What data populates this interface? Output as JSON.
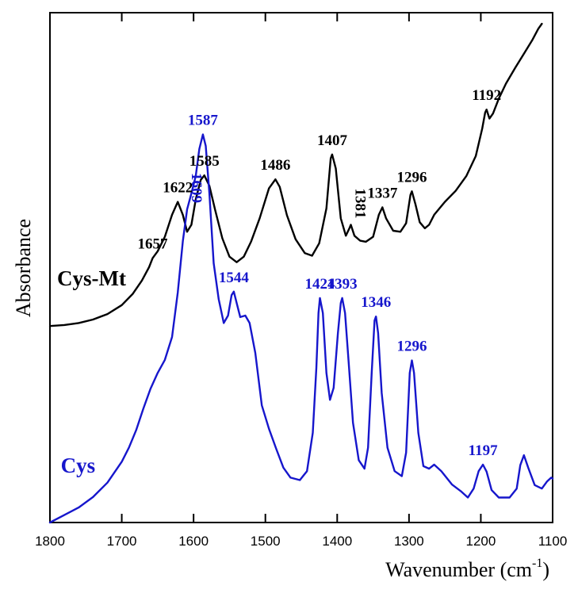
{
  "chart_data": {
    "type": "line",
    "xlabel": "Wavenumber (cm",
    "xlabel_sup": "-1",
    "xlabel_close": ")",
    "ylabel": "Absorbance",
    "xlim": [
      1800,
      1100
    ],
    "ylim": [
      0,
      1
    ],
    "x_reversed": true,
    "y_ticks_shown": false,
    "grid": false,
    "x_ticks": [
      1800,
      1700,
      1600,
      1500,
      1400,
      1300,
      1200,
      1100
    ],
    "series": [
      {
        "name": "Cys-Mt",
        "color": "#000000",
        "points": [
          [
            1800,
            0.394
          ],
          [
            1780,
            0.396
          ],
          [
            1760,
            0.4
          ],
          [
            1740,
            0.407
          ],
          [
            1720,
            0.418
          ],
          [
            1700,
            0.436
          ],
          [
            1685,
            0.458
          ],
          [
            1672,
            0.485
          ],
          [
            1662,
            0.512
          ],
          [
            1657,
            0.53
          ],
          [
            1650,
            0.544
          ],
          [
            1640,
            0.573
          ],
          [
            1630,
            0.617
          ],
          [
            1622,
            0.643
          ],
          [
            1615,
            0.617
          ],
          [
            1609,
            0.583
          ],
          [
            1603,
            0.597
          ],
          [
            1597,
            0.648
          ],
          [
            1590,
            0.687
          ],
          [
            1585,
            0.696
          ],
          [
            1578,
            0.675
          ],
          [
            1570,
            0.627
          ],
          [
            1560,
            0.57
          ],
          [
            1550,
            0.533
          ],
          [
            1540,
            0.522
          ],
          [
            1530,
            0.533
          ],
          [
            1520,
            0.563
          ],
          [
            1508,
            0.61
          ],
          [
            1495,
            0.67
          ],
          [
            1486,
            0.688
          ],
          [
            1480,
            0.673
          ],
          [
            1470,
            0.616
          ],
          [
            1458,
            0.568
          ],
          [
            1445,
            0.54
          ],
          [
            1435,
            0.535
          ],
          [
            1425,
            0.56
          ],
          [
            1415,
            0.63
          ],
          [
            1409,
            0.73
          ],
          [
            1407,
            0.738
          ],
          [
            1402,
            0.71
          ],
          [
            1395,
            0.61
          ],
          [
            1388,
            0.575
          ],
          [
            1383,
            0.59
          ],
          [
            1381,
            0.597
          ],
          [
            1376,
            0.575
          ],
          [
            1368,
            0.565
          ],
          [
            1360,
            0.563
          ],
          [
            1350,
            0.573
          ],
          [
            1342,
            0.617
          ],
          [
            1337,
            0.632
          ],
          [
            1332,
            0.61
          ],
          [
            1322,
            0.585
          ],
          [
            1312,
            0.583
          ],
          [
            1304,
            0.6
          ],
          [
            1298,
            0.657
          ],
          [
            1296,
            0.664
          ],
          [
            1291,
            0.638
          ],
          [
            1285,
            0.602
          ],
          [
            1278,
            0.59
          ],
          [
            1272,
            0.597
          ],
          [
            1265,
            0.617
          ],
          [
            1250,
            0.643
          ],
          [
            1235,
            0.665
          ],
          [
            1220,
            0.695
          ],
          [
            1207,
            0.735
          ],
          [
            1198,
            0.79
          ],
          [
            1194,
            0.822
          ],
          [
            1192,
            0.828
          ],
          [
            1188,
            0.81
          ],
          [
            1183,
            0.82
          ],
          [
            1175,
            0.85
          ],
          [
            1165,
            0.88
          ],
          [
            1152,
            0.912
          ],
          [
            1140,
            0.94
          ],
          [
            1128,
            0.968
          ],
          [
            1120,
            0.99
          ],
          [
            1115,
            1.0
          ]
        ]
      },
      {
        "name": "Cys",
        "color": "#1616cc",
        "points": [
          [
            1800,
            0.0
          ],
          [
            1780,
            0.015
          ],
          [
            1760,
            0.03
          ],
          [
            1740,
            0.051
          ],
          [
            1720,
            0.08
          ],
          [
            1700,
            0.122
          ],
          [
            1690,
            0.15
          ],
          [
            1680,
            0.185
          ],
          [
            1670,
            0.228
          ],
          [
            1660,
            0.268
          ],
          [
            1650,
            0.3
          ],
          [
            1640,
            0.326
          ],
          [
            1630,
            0.372
          ],
          [
            1622,
            0.461
          ],
          [
            1615,
            0.564
          ],
          [
            1609,
            0.628
          ],
          [
            1603,
            0.66
          ],
          [
            1597,
            0.695
          ],
          [
            1592,
            0.749
          ],
          [
            1587,
            0.778
          ],
          [
            1583,
            0.755
          ],
          [
            1578,
            0.66
          ],
          [
            1572,
            0.52
          ],
          [
            1565,
            0.448
          ],
          [
            1558,
            0.4
          ],
          [
            1552,
            0.415
          ],
          [
            1547,
            0.456
          ],
          [
            1544,
            0.463
          ],
          [
            1540,
            0.44
          ],
          [
            1535,
            0.412
          ],
          [
            1528,
            0.415
          ],
          [
            1522,
            0.4
          ],
          [
            1514,
            0.34
          ],
          [
            1505,
            0.235
          ],
          [
            1495,
            0.188
          ],
          [
            1485,
            0.148
          ],
          [
            1475,
            0.11
          ],
          [
            1465,
            0.09
          ],
          [
            1452,
            0.085
          ],
          [
            1442,
            0.103
          ],
          [
            1434,
            0.18
          ],
          [
            1429,
            0.31
          ],
          [
            1426,
            0.42
          ],
          [
            1424,
            0.45
          ],
          [
            1420,
            0.42
          ],
          [
            1415,
            0.3
          ],
          [
            1410,
            0.246
          ],
          [
            1405,
            0.27
          ],
          [
            1399,
            0.38
          ],
          [
            1395,
            0.44
          ],
          [
            1393,
            0.45
          ],
          [
            1389,
            0.42
          ],
          [
            1384,
            0.32
          ],
          [
            1378,
            0.2
          ],
          [
            1370,
            0.125
          ],
          [
            1362,
            0.108
          ],
          [
            1357,
            0.15
          ],
          [
            1352,
            0.3
          ],
          [
            1348,
            0.405
          ],
          [
            1346,
            0.413
          ],
          [
            1343,
            0.38
          ],
          [
            1338,
            0.26
          ],
          [
            1330,
            0.15
          ],
          [
            1320,
            0.103
          ],
          [
            1310,
            0.093
          ],
          [
            1304,
            0.14
          ],
          [
            1299,
            0.3
          ],
          [
            1296,
            0.325
          ],
          [
            1293,
            0.3
          ],
          [
            1287,
            0.18
          ],
          [
            1280,
            0.113
          ],
          [
            1272,
            0.108
          ],
          [
            1265,
            0.116
          ],
          [
            1255,
            0.103
          ],
          [
            1240,
            0.076
          ],
          [
            1228,
            0.063
          ],
          [
            1218,
            0.05
          ],
          [
            1210,
            0.068
          ],
          [
            1203,
            0.103
          ],
          [
            1197,
            0.116
          ],
          [
            1192,
            0.102
          ],
          [
            1185,
            0.065
          ],
          [
            1175,
            0.05
          ],
          [
            1160,
            0.05
          ],
          [
            1150,
            0.068
          ],
          [
            1145,
            0.115
          ],
          [
            1140,
            0.135
          ],
          [
            1134,
            0.11
          ],
          [
            1125,
            0.075
          ],
          [
            1115,
            0.068
          ],
          [
            1108,
            0.082
          ],
          [
            1102,
            0.09
          ],
          [
            1100,
            0.088
          ]
        ]
      }
    ],
    "peak_labels": [
      {
        "text": "1657",
        "x": 1657,
        "y": 0.53,
        "series": "Cys-Mt"
      },
      {
        "text": "1622",
        "x": 1622,
        "y": 0.643,
        "series": "Cys-Mt"
      },
      {
        "text": "1585",
        "x": 1585,
        "y": 0.696,
        "series": "Cys-Mt"
      },
      {
        "text": "1486",
        "x": 1486,
        "y": 0.688,
        "series": "Cys-Mt"
      },
      {
        "text": "1407",
        "x": 1407,
        "y": 0.738,
        "series": "Cys-Mt"
      },
      {
        "text": "1381",
        "x": 1381,
        "y": 0.597,
        "series": "Cys-Mt",
        "vertical": true
      },
      {
        "text": "1337",
        "x": 1337,
        "y": 0.632,
        "series": "Cys-Mt"
      },
      {
        "text": "1296",
        "x": 1296,
        "y": 0.664,
        "series": "Cys-Mt"
      },
      {
        "text": "1192",
        "x": 1192,
        "y": 0.828,
        "series": "Cys-Mt"
      },
      {
        "text": "1587",
        "x": 1587,
        "y": 0.778,
        "series": "Cys"
      },
      {
        "text": "1609",
        "x": 1609,
        "y": 0.628,
        "series": "Cys",
        "vertical": true
      },
      {
        "text": "1544",
        "x": 1544,
        "y": 0.463,
        "series": "Cys"
      },
      {
        "text": "1424",
        "x": 1424,
        "y": 0.45,
        "series": "Cys"
      },
      {
        "text": "1393",
        "x": 1393,
        "y": 0.45,
        "series": "Cys"
      },
      {
        "text": "1346",
        "x": 1346,
        "y": 0.413,
        "series": "Cys"
      },
      {
        "text": "1296",
        "x": 1296,
        "y": 0.325,
        "series": "Cys"
      },
      {
        "text": "1197",
        "x": 1197,
        "y": 0.116,
        "series": "Cys"
      }
    ],
    "series_labels": [
      {
        "text": "Cys-Mt",
        "series": "Cys-Mt"
      },
      {
        "text": "Cys",
        "series": "Cys"
      }
    ]
  }
}
